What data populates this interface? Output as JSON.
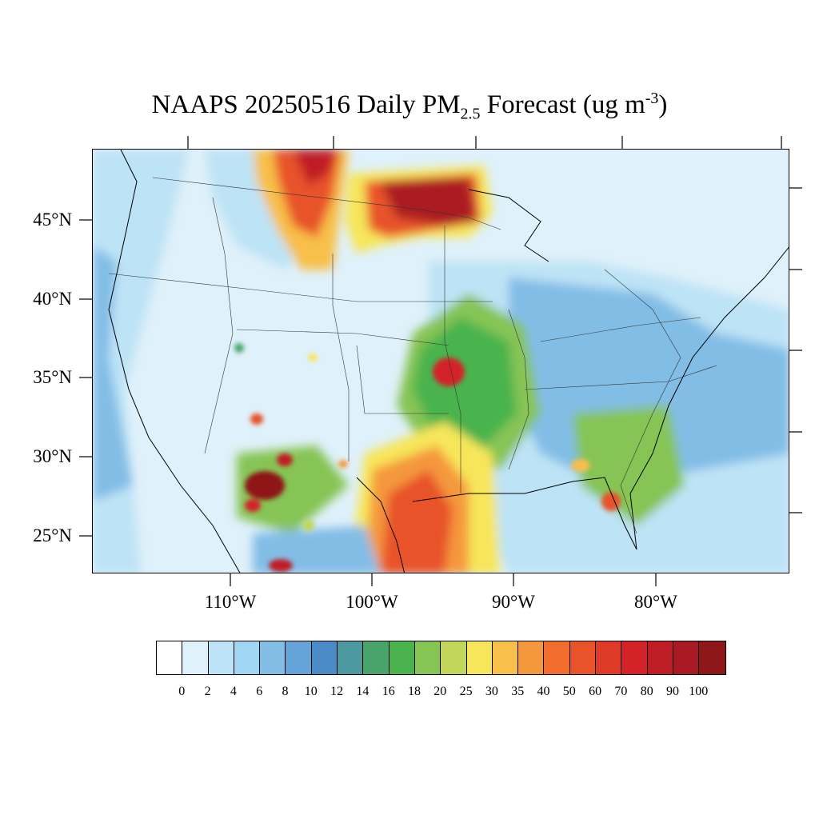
{
  "title": {
    "prefix": "NAAPS 20250516 Daily PM",
    "subscript": "2.5",
    "middle": " Forecast (ug m",
    "superscript": "-3",
    "suffix": ")"
  },
  "axes": {
    "lat_labels": [
      "45°N",
      "40°N",
      "35°N",
      "30°N",
      "25°N"
    ],
    "lon_labels": [
      "110°W",
      "100°W",
      "90°W",
      "80°W"
    ]
  },
  "colorbar": {
    "colors": [
      "#ffffff",
      "#dff1fa",
      "#bde3f6",
      "#9fd6f3",
      "#82bde6",
      "#64a4d9",
      "#4a8bc6",
      "#4c9aa0",
      "#49a46c",
      "#4ab34d",
      "#86c454",
      "#c2d65a",
      "#f7e65a",
      "#f8bf4a",
      "#f4983d",
      "#f06d2e",
      "#e85329",
      "#de3a28",
      "#d42229",
      "#bf1d26",
      "#aa1a22",
      "#8e1719"
    ],
    "labels": [
      "0",
      "2",
      "4",
      "6",
      "8",
      "10",
      "12",
      "14",
      "16",
      "18",
      "20",
      "25",
      "30",
      "35",
      "40",
      "50",
      "60",
      "70",
      "80",
      "90",
      "100"
    ]
  }
}
